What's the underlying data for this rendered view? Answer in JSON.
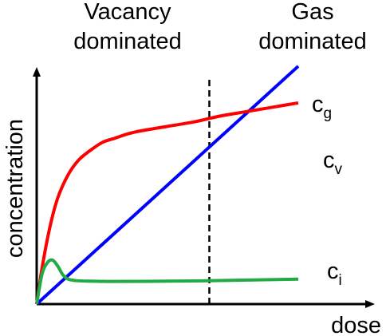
{
  "chart_data": {
    "type": "line",
    "xlabel": "dose",
    "ylabel": "concentration",
    "regions": [
      {
        "lines": [
          "Vacancy",
          "dominated"
        ]
      },
      {
        "lines": [
          "Gas",
          "dominated"
        ]
      }
    ],
    "boundary_x": 0.66,
    "xlim": [
      0,
      1
    ],
    "ylim": [
      0,
      1
    ],
    "grid": false,
    "series": [
      {
        "name": "c_g",
        "label_main": "c",
        "label_sub": "g",
        "color": "#0000ff",
        "x": [
          0,
          1
        ],
        "y": [
          0,
          0.81
        ]
      },
      {
        "name": "c_v",
        "label_main": "c",
        "label_sub": "v",
        "color": "#ff0000",
        "x": [
          0.0,
          0.02,
          0.05,
          0.08,
          0.12,
          0.16,
          0.2,
          0.25,
          0.3,
          0.35,
          0.4,
          0.5,
          0.6,
          0.7,
          0.8,
          0.9,
          1.0
        ],
        "y": [
          0.0,
          0.12,
          0.26,
          0.36,
          0.44,
          0.49,
          0.52,
          0.55,
          0.565,
          0.58,
          0.59,
          0.605,
          0.62,
          0.64,
          0.655,
          0.67,
          0.685
        ]
      },
      {
        "name": "c_i",
        "label_main": "c",
        "label_sub": "i",
        "color": "#22aa44",
        "x": [
          0.0,
          0.02,
          0.04,
          0.06,
          0.08,
          0.1,
          0.12,
          0.15,
          0.2,
          0.3,
          0.5,
          0.7,
          1.0
        ],
        "y": [
          0.0,
          0.1,
          0.14,
          0.15,
          0.13,
          0.1,
          0.085,
          0.08,
          0.078,
          0.077,
          0.078,
          0.08,
          0.085
        ]
      }
    ]
  }
}
